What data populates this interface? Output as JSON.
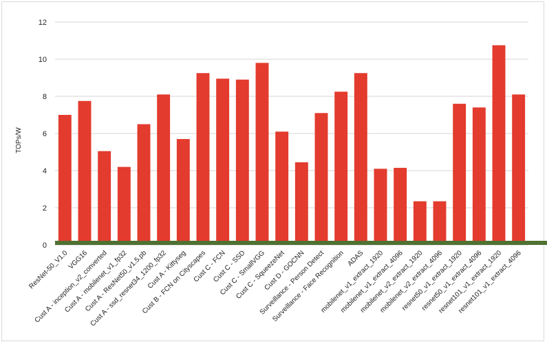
{
  "chart_data": {
    "type": "bar",
    "title": "",
    "xlabel": "",
    "ylabel": "TOPs/W",
    "ylim": [
      0,
      12
    ],
    "yticks": [
      0,
      2,
      4,
      6,
      8,
      10,
      12
    ],
    "grid": true,
    "legend": "none",
    "bar_color": "#e33b2e",
    "baseline_color": "#4f7132",
    "categories": [
      "ResNet-50_V1.0",
      "VGG16",
      "Cust A - inception_v2_converted",
      "Cust A - mobilenet_v1_fp32",
      "Cust A - ResNet50_v1.5.pb",
      "Cust A - ssd_resnet34_1200_fp32",
      "Cust A - Kittyseg",
      "Cust B - FCN on Cityscapes",
      "Cust C - FCN",
      "Cust C - SSD",
      "Cust C - SmallVGG",
      "Cust C - SqueezeNet",
      "Cust D - GOCNN",
      "Surveillance - Person Detect",
      "Surveillance - Face Recognition",
      "ADAS",
      "mobilenet_v1_extract_1920",
      "mobilenet_v1_extract_4096",
      "mobilenet_v2_extract_1920",
      "mobilenet_v2_extract_4096",
      "resnet50_v1_extract_1920",
      "resnet50_v1_extract_4096",
      "resnet101_v1_extract_1920",
      "resnet101_v1_extract_4096"
    ],
    "values": [
      7.0,
      7.75,
      5.05,
      4.2,
      6.5,
      8.1,
      5.7,
      9.25,
      8.95,
      8.9,
      9.8,
      6.1,
      4.45,
      7.1,
      8.25,
      9.25,
      4.1,
      4.15,
      2.35,
      2.35,
      7.6,
      7.4,
      10.75,
      8.1
    ]
  }
}
